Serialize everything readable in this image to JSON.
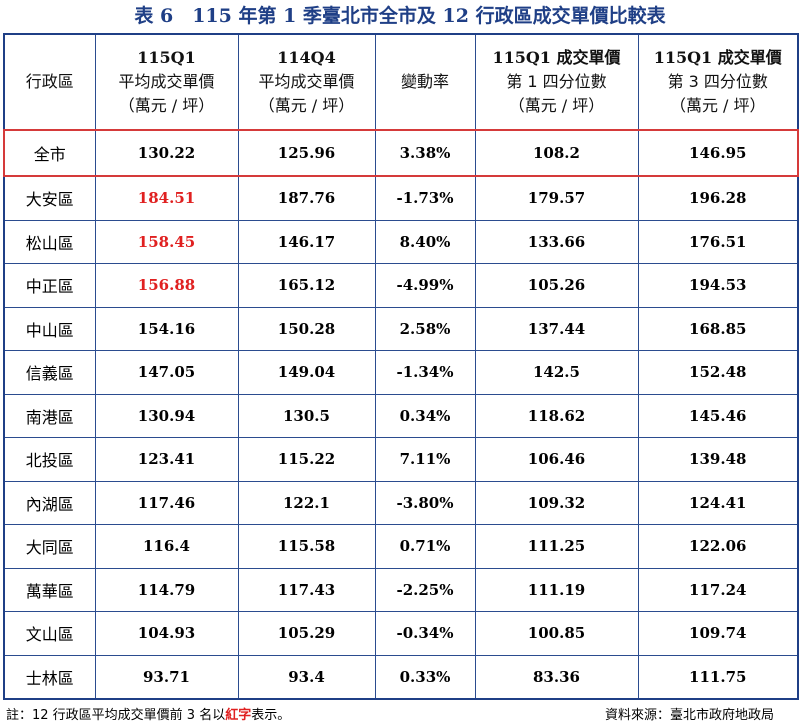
{
  "title": "表 6　115 年第 1 季臺北市全市及 12 行政區成交單價比較表",
  "header": {
    "district": "行政區",
    "col1": {
      "period": "115Q1",
      "line2": "平均成交單價",
      "unit": "（萬元 / 坪）"
    },
    "col2": {
      "period": "114Q4",
      "line2": "平均成交單價",
      "unit": "（萬元 / 坪）"
    },
    "col3": {
      "label": "變動率"
    },
    "col4": {
      "period": "115Q1 成交單價",
      "line2": "第 1 四分位數",
      "unit": "（萬元 / 坪）"
    },
    "col5": {
      "period": "115Q1 成交單價",
      "line2": "第 3 四分位數",
      "unit": "（萬元 / 坪）"
    }
  },
  "rows": [
    {
      "district": "全市",
      "avg_115q1": "130.22",
      "avg_114q4": "125.96",
      "change": "3.38%",
      "q1": "108.2",
      "q3": "146.95"
    },
    {
      "district": "大安區",
      "avg_115q1": "184.51",
      "avg_114q4": "187.76",
      "change": "-1.73%",
      "q1": "179.57",
      "q3": "196.28"
    },
    {
      "district": "松山區",
      "avg_115q1": "158.45",
      "avg_114q4": "146.17",
      "change": "8.40%",
      "q1": "133.66",
      "q3": "176.51"
    },
    {
      "district": "中正區",
      "avg_115q1": "156.88",
      "avg_114q4": "165.12",
      "change": "-4.99%",
      "q1": "105.26",
      "q3": "194.53"
    },
    {
      "district": "中山區",
      "avg_115q1": "154.16",
      "avg_114q4": "150.28",
      "change": "2.58%",
      "q1": "137.44",
      "q3": "168.85"
    },
    {
      "district": "信義區",
      "avg_115q1": "147.05",
      "avg_114q4": "149.04",
      "change": "-1.34%",
      "q1": "142.5",
      "q3": "152.48"
    },
    {
      "district": "南港區",
      "avg_115q1": "130.94",
      "avg_114q4": "130.5",
      "change": "0.34%",
      "q1": "118.62",
      "q3": "145.46"
    },
    {
      "district": "北投區",
      "avg_115q1": "123.41",
      "avg_114q4": "115.22",
      "change": "7.11%",
      "q1": "106.46",
      "q3": "139.48"
    },
    {
      "district": "內湖區",
      "avg_115q1": "117.46",
      "avg_114q4": "122.1",
      "change": "-3.80%",
      "q1": "109.32",
      "q3": "124.41"
    },
    {
      "district": "大同區",
      "avg_115q1": "116.4",
      "avg_114q4": "115.58",
      "change": "0.71%",
      "q1": "111.25",
      "q3": "122.06"
    },
    {
      "district": "萬華區",
      "avg_115q1": "114.79",
      "avg_114q4": "117.43",
      "change": "-2.25%",
      "q1": "111.19",
      "q3": "117.24"
    },
    {
      "district": "文山區",
      "avg_115q1": "104.93",
      "avg_114q4": "105.29",
      "change": "-0.34%",
      "q1": "100.85",
      "q3": "109.74"
    },
    {
      "district": "士林區",
      "avg_115q1": "93.71",
      "avg_114q4": "93.4",
      "change": "0.33%",
      "q1": "83.36",
      "q3": "111.75"
    }
  ],
  "footer": {
    "note_prefix": "註：12 行政區平均成交單價前 3 名以",
    "note_highlight": "紅字",
    "note_suffix": "表示。",
    "source": "資料來源：臺北市政府地政局"
  },
  "colors": {
    "header_blue": "#1f3f86",
    "highlight_red": "#e02020",
    "city_box": "#d53a3a"
  }
}
